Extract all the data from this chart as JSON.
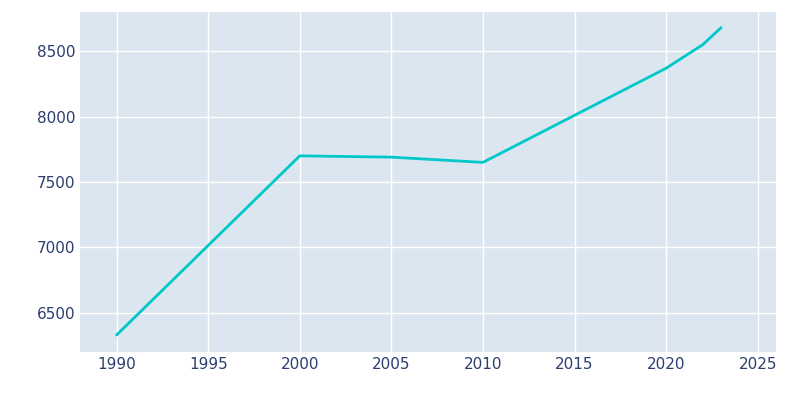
{
  "years": [
    1990,
    2000,
    2005,
    2010,
    2020,
    2022,
    2023
  ],
  "population": [
    6330,
    7700,
    7690,
    7650,
    8370,
    8550,
    8680
  ],
  "line_color": "#00c8c8",
  "outer_bg_color": "#ffffff",
  "plot_bg_color": "#dce6f0",
  "grid_color": "#ffffff",
  "tick_color": "#2c3e6e",
  "xlim": [
    1988,
    2026
  ],
  "ylim": [
    6200,
    8800
  ],
  "xticks": [
    1990,
    1995,
    2000,
    2005,
    2010,
    2015,
    2020,
    2025
  ],
  "yticks": [
    6500,
    7000,
    7500,
    8000,
    8500
  ],
  "line_width": 2.0,
  "tick_label_size": 11
}
